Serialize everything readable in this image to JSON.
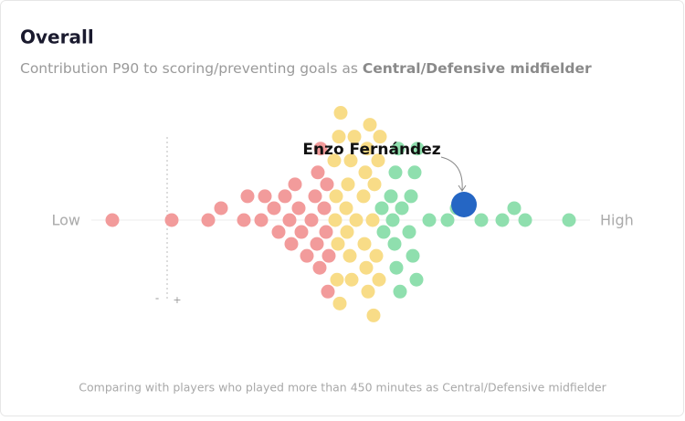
{
  "chart_data": {
    "type": "beeswarm",
    "title": "Overall",
    "subtitle": "Contribution P90 to scoring/preventing goals as ",
    "subtitle_bold": "Central/Defensive midfielder",
    "low_label": "Low",
    "high_label": "High",
    "zero": 0,
    "minus_label": "-",
    "plus_label": "+",
    "footnote": "Comparing with players who played more than 450 minutes as Central/Defensive midfielder",
    "xlim": [
      -0.83,
      4.63
    ],
    "series": [
      {
        "color": "#f29b9b",
        "values": [
          -0.6,
          0.05,
          0.45,
          0.59,
          0.84,
          0.88,
          1.03,
          1.07,
          1.17,
          1.22,
          1.29,
          1.34,
          1.36,
          1.4,
          1.44,
          1.47,
          1.53,
          1.58,
          1.62,
          1.64,
          1.65,
          1.67,
          1.68,
          1.72,
          1.74,
          1.75,
          1.76,
          1.77
        ]
      },
      {
        "color": "#f8dc87",
        "values": [
          1.83,
          1.84,
          1.85,
          1.86,
          1.87,
          1.88,
          1.89,
          1.9,
          1.96,
          1.97,
          1.98,
          2.0,
          2.01,
          2.02,
          2.05,
          2.07,
          2.15,
          2.16,
          2.17,
          2.18,
          2.19,
          2.2,
          2.22,
          2.25,
          2.26,
          2.27,
          2.29,
          2.31,
          2.32,
          2.33
        ]
      },
      {
        "color": "#8fdfae",
        "values": [
          2.35,
          2.37,
          2.45,
          2.47,
          2.49,
          2.5,
          2.51,
          2.53,
          2.55,
          2.57,
          2.65,
          2.67,
          2.69,
          2.71,
          2.73,
          2.74,
          2.87,
          3.07,
          3.17,
          3.44,
          3.67,
          3.8,
          3.92,
          4.4
        ]
      }
    ],
    "highlight": {
      "label": "Enzo Fernández",
      "value": 3.25,
      "color": "#2566c4"
    }
  }
}
